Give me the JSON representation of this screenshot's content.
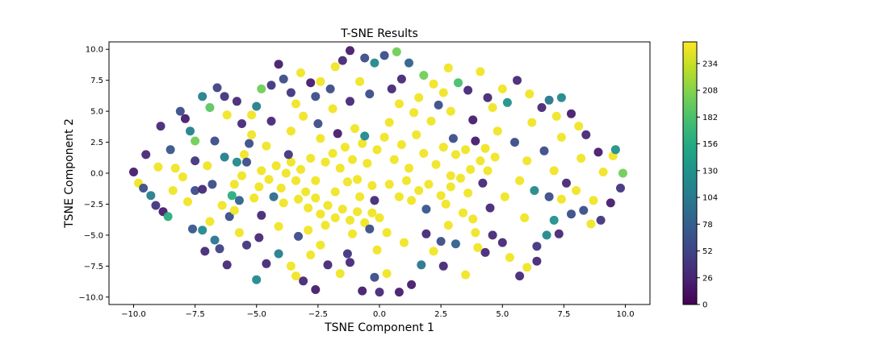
{
  "chart_data": {
    "type": "scatter",
    "title": "T-SNE Results",
    "xlabel": "TSNE Component 1",
    "ylabel": "TSNE Component 2",
    "xlim": [
      -11.0,
      11.0
    ],
    "ylim": [
      -10.6,
      10.6
    ],
    "x_ticks": [
      -10.0,
      -7.5,
      -5.0,
      -2.5,
      0.0,
      2.5,
      5.0,
      7.5,
      10.0
    ],
    "x_tick_labels": [
      "−10.0",
      "−7.5",
      "−5.0",
      "−2.5",
      "0.0",
      "2.5",
      "5.0",
      "7.5",
      "10.0"
    ],
    "y_ticks": [
      -10.0,
      -7.5,
      -5.0,
      -2.5,
      0.0,
      2.5,
      5.0,
      7.5,
      10.0
    ],
    "y_tick_labels": [
      "−10.0",
      "−7.5",
      "−5.0",
      "−2.5",
      "0.0",
      "2.5",
      "5.0",
      "7.5",
      "10.0"
    ],
    "grid": false,
    "legend": "none",
    "colormap": "viridis",
    "color_range": [
      0,
      255
    ],
    "colorbar_ticks": [
      0,
      26,
      52,
      78,
      104,
      130,
      156,
      182,
      208,
      234
    ],
    "colorbar_tick_labels": [
      "0",
      "26",
      "52",
      "78",
      "104",
      "130",
      "156",
      "182",
      "208",
      "234"
    ],
    "points": [
      [
        -10.0,
        0.1,
        20
      ],
      [
        -9.8,
        -0.8,
        250
      ],
      [
        -9.5,
        1.5,
        30
      ],
      [
        -9.3,
        -1.8,
        110
      ],
      [
        -9.0,
        0.5,
        250
      ],
      [
        -9.1,
        -2.6,
        40
      ],
      [
        -8.8,
        -3.1,
        20
      ],
      [
        -8.6,
        -3.5,
        160
      ],
      [
        -8.9,
        3.8,
        30
      ],
      [
        -8.5,
        1.9,
        70
      ],
      [
        -8.3,
        0.4,
        250
      ],
      [
        -8.0,
        -0.3,
        250
      ],
      [
        -8.1,
        5.0,
        60
      ],
      [
        -7.9,
        4.4,
        20
      ],
      [
        -7.7,
        3.4,
        110
      ],
      [
        -7.5,
        2.6,
        200
      ],
      [
        -7.8,
        -2.3,
        250
      ],
      [
        -7.5,
        -1.4,
        60
      ],
      [
        -7.2,
        -1.3,
        30
      ],
      [
        -7.6,
        -4.5,
        70
      ],
      [
        -7.2,
        -4.6,
        120
      ],
      [
        -7.2,
        6.2,
        110
      ],
      [
        -6.9,
        5.3,
        190
      ],
      [
        -6.6,
        6.9,
        50
      ],
      [
        -6.3,
        6.2,
        40
      ],
      [
        -6.7,
        -5.4,
        100
      ],
      [
        -6.5,
        -6.1,
        50
      ],
      [
        -6.2,
        -7.4,
        30
      ],
      [
        -6.4,
        -2.6,
        250
      ],
      [
        -6.0,
        -1.8,
        160
      ],
      [
        -6.1,
        -3.5,
        60
      ],
      [
        -5.9,
        -3.0,
        250
      ],
      [
        -5.7,
        -2.2,
        80
      ],
      [
        -5.6,
        -0.2,
        250
      ],
      [
        -5.8,
        0.9,
        120
      ],
      [
        -5.5,
        1.5,
        250
      ],
      [
        -5.3,
        2.4,
        60
      ],
      [
        -5.6,
        4.0,
        30
      ],
      [
        -5.2,
        4.7,
        250
      ],
      [
        -5.0,
        5.4,
        110
      ],
      [
        -4.8,
        6.8,
        200
      ],
      [
        -4.4,
        7.1,
        40
      ],
      [
        -4.1,
        8.8,
        20
      ],
      [
        -3.9,
        7.6,
        60
      ],
      [
        -3.6,
        6.5,
        40
      ],
      [
        -3.2,
        8.1,
        250
      ],
      [
        -2.8,
        7.3,
        20
      ],
      [
        -2.4,
        7.4,
        250
      ],
      [
        -2.0,
        6.8,
        60
      ],
      [
        -1.8,
        8.6,
        250
      ],
      [
        -1.5,
        9.1,
        30
      ],
      [
        -1.2,
        9.9,
        20
      ],
      [
        -0.6,
        9.3,
        60
      ],
      [
        -0.2,
        8.9,
        120
      ],
      [
        0.2,
        9.5,
        60
      ],
      [
        0.7,
        9.8,
        200
      ],
      [
        1.2,
        8.9,
        80
      ],
      [
        1.8,
        7.9,
        200
      ],
      [
        2.2,
        7.2,
        250
      ],
      [
        2.8,
        8.5,
        250
      ],
      [
        3.2,
        7.3,
        180
      ],
      [
        3.6,
        6.7,
        30
      ],
      [
        4.1,
        8.2,
        250
      ],
      [
        4.6,
        5.3,
        250
      ],
      [
        5.0,
        6.8,
        250
      ],
      [
        5.2,
        5.7,
        130
      ],
      [
        5.6,
        7.5,
        30
      ],
      [
        6.1,
        6.4,
        250
      ],
      [
        6.6,
        5.3,
        30
      ],
      [
        6.9,
        5.9,
        100
      ],
      [
        7.2,
        4.6,
        250
      ],
      [
        7.4,
        6.1,
        120
      ],
      [
        7.8,
        4.8,
        20
      ],
      [
        8.1,
        3.8,
        250
      ],
      [
        8.4,
        3.1,
        30
      ],
      [
        8.9,
        1.7,
        20
      ],
      [
        9.1,
        0.1,
        250
      ],
      [
        9.5,
        1.4,
        250
      ],
      [
        9.9,
        0.0,
        200
      ],
      [
        9.8,
        -1.2,
        40
      ],
      [
        9.4,
        -2.4,
        20
      ],
      [
        9.0,
        -3.8,
        40
      ],
      [
        8.6,
        -4.1,
        250
      ],
      [
        8.3,
        -3.0,
        60
      ],
      [
        7.8,
        -3.3,
        60
      ],
      [
        7.4,
        -2.1,
        250
      ],
      [
        7.1,
        -3.8,
        130
      ],
      [
        6.8,
        -5.0,
        120
      ],
      [
        6.4,
        -5.9,
        40
      ],
      [
        6.0,
        -7.6,
        250
      ],
      [
        5.7,
        -8.3,
        30
      ],
      [
        5.3,
        -6.8,
        250
      ],
      [
        5.0,
        -5.6,
        30
      ],
      [
        4.6,
        -5.0,
        30
      ],
      [
        4.3,
        -6.4,
        30
      ],
      [
        3.9,
        -4.8,
        250
      ],
      [
        3.4,
        -3.2,
        250
      ],
      [
        3.1,
        -5.7,
        80
      ],
      [
        2.6,
        -7.5,
        30
      ],
      [
        2.2,
        -6.3,
        250
      ],
      [
        1.7,
        -7.4,
        100
      ],
      [
        1.3,
        -9.0,
        20
      ],
      [
        0.8,
        -9.6,
        20
      ],
      [
        0.3,
        -8.1,
        250
      ],
      [
        -0.2,
        -8.4,
        60
      ],
      [
        -0.7,
        -9.5,
        20
      ],
      [
        -1.2,
        -7.2,
        30
      ],
      [
        -1.6,
        -8.1,
        250
      ],
      [
        -2.1,
        -7.4,
        30
      ],
      [
        -2.6,
        -9.4,
        20
      ],
      [
        -3.1,
        -8.7,
        30
      ],
      [
        -3.6,
        -7.5,
        250
      ],
      [
        -4.1,
        -6.5,
        110
      ],
      [
        -4.6,
        -7.3,
        30
      ],
      [
        -5.0,
        -8.6,
        120
      ],
      [
        -5.4,
        -5.8,
        40
      ],
      [
        -5.7,
        -4.8,
        250
      ],
      [
        -4.8,
        0.2,
        250
      ],
      [
        -4.5,
        -0.5,
        250
      ],
      [
        -4.2,
        0.6,
        250
      ],
      [
        -4.0,
        -1.2,
        250
      ],
      [
        -3.8,
        0.0,
        250
      ],
      [
        -3.6,
        0.9,
        250
      ],
      [
        -3.4,
        -0.6,
        250
      ],
      [
        -3.2,
        0.3,
        250
      ],
      [
        -3.0,
        -1.5,
        250
      ],
      [
        -2.8,
        1.2,
        250
      ],
      [
        -3.7,
        1.5,
        40
      ],
      [
        -4.3,
        -1.9,
        90
      ],
      [
        -3.9,
        -2.4,
        250
      ],
      [
        -3.3,
        -2.1,
        250
      ],
      [
        -2.9,
        -2.8,
        250
      ],
      [
        -2.6,
        -2.0,
        250
      ],
      [
        -2.4,
        -3.3,
        250
      ],
      [
        -2.1,
        -2.6,
        250
      ],
      [
        -1.8,
        -3.6,
        250
      ],
      [
        -1.5,
        -2.9,
        250
      ],
      [
        -1.2,
        -3.8,
        250
      ],
      [
        -0.9,
        -3.1,
        250
      ],
      [
        -0.6,
        -4.0,
        250
      ],
      [
        -0.3,
        -3.2,
        250
      ],
      [
        0.0,
        -3.6,
        250
      ],
      [
        -2.2,
        -4.2,
        250
      ],
      [
        -2.9,
        -4.6,
        250
      ],
      [
        -1.1,
        -4.9,
        250
      ],
      [
        -0.4,
        -4.5,
        60
      ],
      [
        0.3,
        -4.8,
        250
      ],
      [
        -2.2,
        0.9,
        250
      ],
      [
        -1.9,
        1.6,
        250
      ],
      [
        -1.6,
        0.4,
        250
      ],
      [
        -1.4,
        2.1,
        250
      ],
      [
        -1.1,
        1.1,
        250
      ],
      [
        -0.9,
        -0.5,
        250
      ],
      [
        -0.7,
        2.4,
        250
      ],
      [
        -0.5,
        0.8,
        250
      ],
      [
        -0.3,
        -1.0,
        250
      ],
      [
        -0.1,
        1.9,
        250
      ],
      [
        -2.4,
        2.8,
        250
      ],
      [
        -1.7,
        3.2,
        20
      ],
      [
        -1.0,
        3.6,
        250
      ],
      [
        -0.6,
        3.0,
        120
      ],
      [
        0.2,
        2.9,
        250
      ],
      [
        -2.6,
        -0.6,
        250
      ],
      [
        -1.8,
        -1.5,
        250
      ],
      [
        -1.3,
        -0.7,
        250
      ],
      [
        -0.8,
        -1.9,
        250
      ],
      [
        -0.2,
        -2.2,
        30
      ],
      [
        0.6,
        1.1,
        250
      ],
      [
        0.9,
        2.3,
        250
      ],
      [
        1.2,
        0.4,
        250
      ],
      [
        1.5,
        3.1,
        250
      ],
      [
        1.8,
        1.6,
        250
      ],
      [
        2.1,
        4.2,
        250
      ],
      [
        2.3,
        0.7,
        250
      ],
      [
        2.6,
        2.1,
        250
      ],
      [
        2.9,
        -0.2,
        250
      ],
      [
        3.1,
        1.5,
        250
      ],
      [
        1.4,
        4.9,
        250
      ],
      [
        0.8,
        5.6,
        250
      ],
      [
        2.4,
        5.5,
        60
      ],
      [
        0.4,
        4.1,
        250
      ],
      [
        1.1,
        -0.6,
        250
      ],
      [
        1.6,
        -1.4,
        250
      ],
      [
        2.0,
        -0.9,
        250
      ],
      [
        2.5,
        -1.8,
        250
      ],
      [
        2.9,
        -1.1,
        250
      ],
      [
        3.3,
        -0.4,
        250
      ],
      [
        3.7,
        0.3,
        250
      ],
      [
        4.1,
        1.0,
        250
      ],
      [
        4.4,
        0.2,
        250
      ],
      [
        3.5,
        1.9,
        250
      ],
      [
        3.9,
        2.6,
        20
      ],
      [
        4.3,
        2.0,
        250
      ],
      [
        4.7,
        1.3,
        250
      ],
      [
        3.0,
        2.8,
        60
      ],
      [
        3.6,
        -1.6,
        250
      ],
      [
        4.2,
        -0.8,
        30
      ],
      [
        1.3,
        -2.2,
        250
      ],
      [
        1.9,
        -2.9,
        70
      ],
      [
        2.7,
        -2.5,
        250
      ],
      [
        0.8,
        -1.9,
        250
      ],
      [
        0.4,
        -0.9,
        250
      ],
      [
        -5.2,
        3.1,
        250
      ],
      [
        -4.6,
        2.2,
        250
      ],
      [
        -4.9,
        -1.1,
        250
      ],
      [
        -5.4,
        0.9,
        60
      ],
      [
        -5.1,
        -2.0,
        250
      ],
      [
        -4.4,
        4.2,
        30
      ],
      [
        -3.6,
        3.4,
        250
      ],
      [
        -3.1,
        4.6,
        250
      ],
      [
        -2.5,
        4.0,
        60
      ],
      [
        -1.9,
        5.2,
        250
      ],
      [
        -1.2,
        5.8,
        30
      ],
      [
        -0.4,
        6.4,
        60
      ],
      [
        0.5,
        6.8,
        30
      ],
      [
        1.6,
        6.1,
        250
      ],
      [
        2.9,
        5.0,
        250
      ],
      [
        3.8,
        4.3,
        20
      ],
      [
        4.8,
        3.4,
        250
      ],
      [
        5.5,
        2.5,
        60
      ],
      [
        6.0,
        1.0,
        250
      ],
      [
        5.7,
        -0.6,
        250
      ],
      [
        6.3,
        -1.4,
        120
      ],
      [
        5.1,
        -1.9,
        250
      ],
      [
        4.5,
        -2.8,
        30
      ],
      [
        3.8,
        -3.7,
        250
      ],
      [
        2.8,
        -4.2,
        250
      ],
      [
        1.9,
        -4.9,
        30
      ],
      [
        1.0,
        -5.6,
        250
      ],
      [
        -0.1,
        -6.2,
        250
      ],
      [
        -1.3,
        -6.5,
        40
      ],
      [
        -2.4,
        -5.8,
        250
      ],
      [
        -3.3,
        -5.1,
        60
      ],
      [
        -4.1,
        -4.3,
        250
      ],
      [
        -4.8,
        -3.4,
        30
      ],
      [
        -5.9,
        -0.9,
        250
      ],
      [
        -6.3,
        1.3,
        110
      ],
      [
        -6.7,
        2.6,
        60
      ],
      [
        -7.0,
        0.6,
        250
      ],
      [
        -6.8,
        -0.9,
        60
      ],
      [
        6.7,
        1.8,
        60
      ],
      [
        7.1,
        0.2,
        250
      ],
      [
        7.6,
        -0.8,
        30
      ],
      [
        6.9,
        -1.9,
        60
      ],
      [
        8.2,
        1.2,
        250
      ],
      [
        8.0,
        -1.4,
        250
      ],
      [
        7.4,
        2.9,
        250
      ],
      [
        -7.5,
        1.0,
        40
      ],
      [
        -8.4,
        -1.4,
        250
      ],
      [
        -6.2,
        4.7,
        250
      ],
      [
        -5.8,
        5.8,
        30
      ],
      [
        -3.4,
        5.6,
        250
      ],
      [
        -2.6,
        6.2,
        60
      ],
      [
        -0.8,
        7.4,
        250
      ],
      [
        0.9,
        7.6,
        30
      ],
      [
        2.6,
        6.5,
        250
      ],
      [
        4.4,
        6.1,
        30
      ],
      [
        6.2,
        4.1,
        250
      ],
      [
        4.0,
        -6.0,
        250
      ],
      [
        2.5,
        -5.5,
        60
      ],
      [
        -2.8,
        -6.6,
        250
      ],
      [
        -4.9,
        -5.2,
        30
      ],
      [
        -6.9,
        -3.9,
        250
      ],
      [
        5.9,
        -3.6,
        250
      ],
      [
        7.3,
        -4.9,
        30
      ],
      [
        8.7,
        -2.2,
        250
      ],
      [
        9.6,
        1.9,
        130
      ],
      [
        -9.6,
        -1.2,
        60
      ],
      [
        -7.1,
        -6.3,
        30
      ],
      [
        -3.4,
        -8.3,
        250
      ],
      [
        0.0,
        -9.6,
        30
      ],
      [
        3.5,
        -8.2,
        250
      ],
      [
        6.4,
        -7.1,
        30
      ]
    ]
  }
}
